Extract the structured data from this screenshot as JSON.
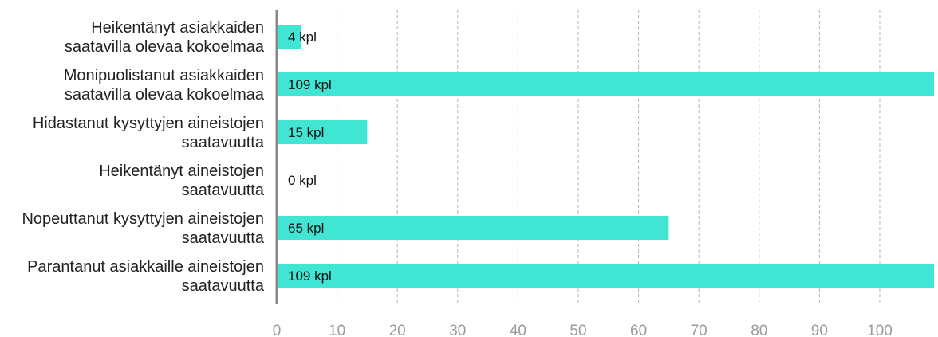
{
  "chart_data": {
    "type": "bar",
    "orientation": "horizontal",
    "categories": [
      [
        "Heikentänyt asiakkaiden",
        "saatavilla olevaa kokoelmaa"
      ],
      [
        "Monipuolistanut asiakkaiden",
        "saatavilla olevaa kokoelmaa"
      ],
      [
        "Hidastanut kysyttyjen aineistojen",
        "saatavuutta"
      ],
      [
        "Heikentänyt aineistojen",
        "saatavuutta"
      ],
      [
        "Nopeuttanut kysyttyjen aineistojen",
        "saatavuutta"
      ],
      [
        "Parantanut asiakkaille aineistojen",
        "saatavuutta"
      ]
    ],
    "values": [
      4,
      109,
      15,
      0,
      65,
      109
    ],
    "data_labels": [
      "4 kpl",
      "109 kpl",
      "15 kpl",
      "0 kpl",
      "65 kpl",
      "109 kpl"
    ],
    "xticks": [
      0,
      10,
      20,
      30,
      40,
      50,
      60,
      70,
      80,
      90,
      100
    ],
    "xlim": [
      0,
      109
    ],
    "grid": "vertical-dashed",
    "title": "",
    "xlabel": "",
    "ylabel": ""
  },
  "colors": {
    "bar": "#40e5d4",
    "axis": "#888888",
    "grid": "#b5b5b5",
    "tick_text": "#9a9a9a",
    "label_text": "#222222"
  }
}
